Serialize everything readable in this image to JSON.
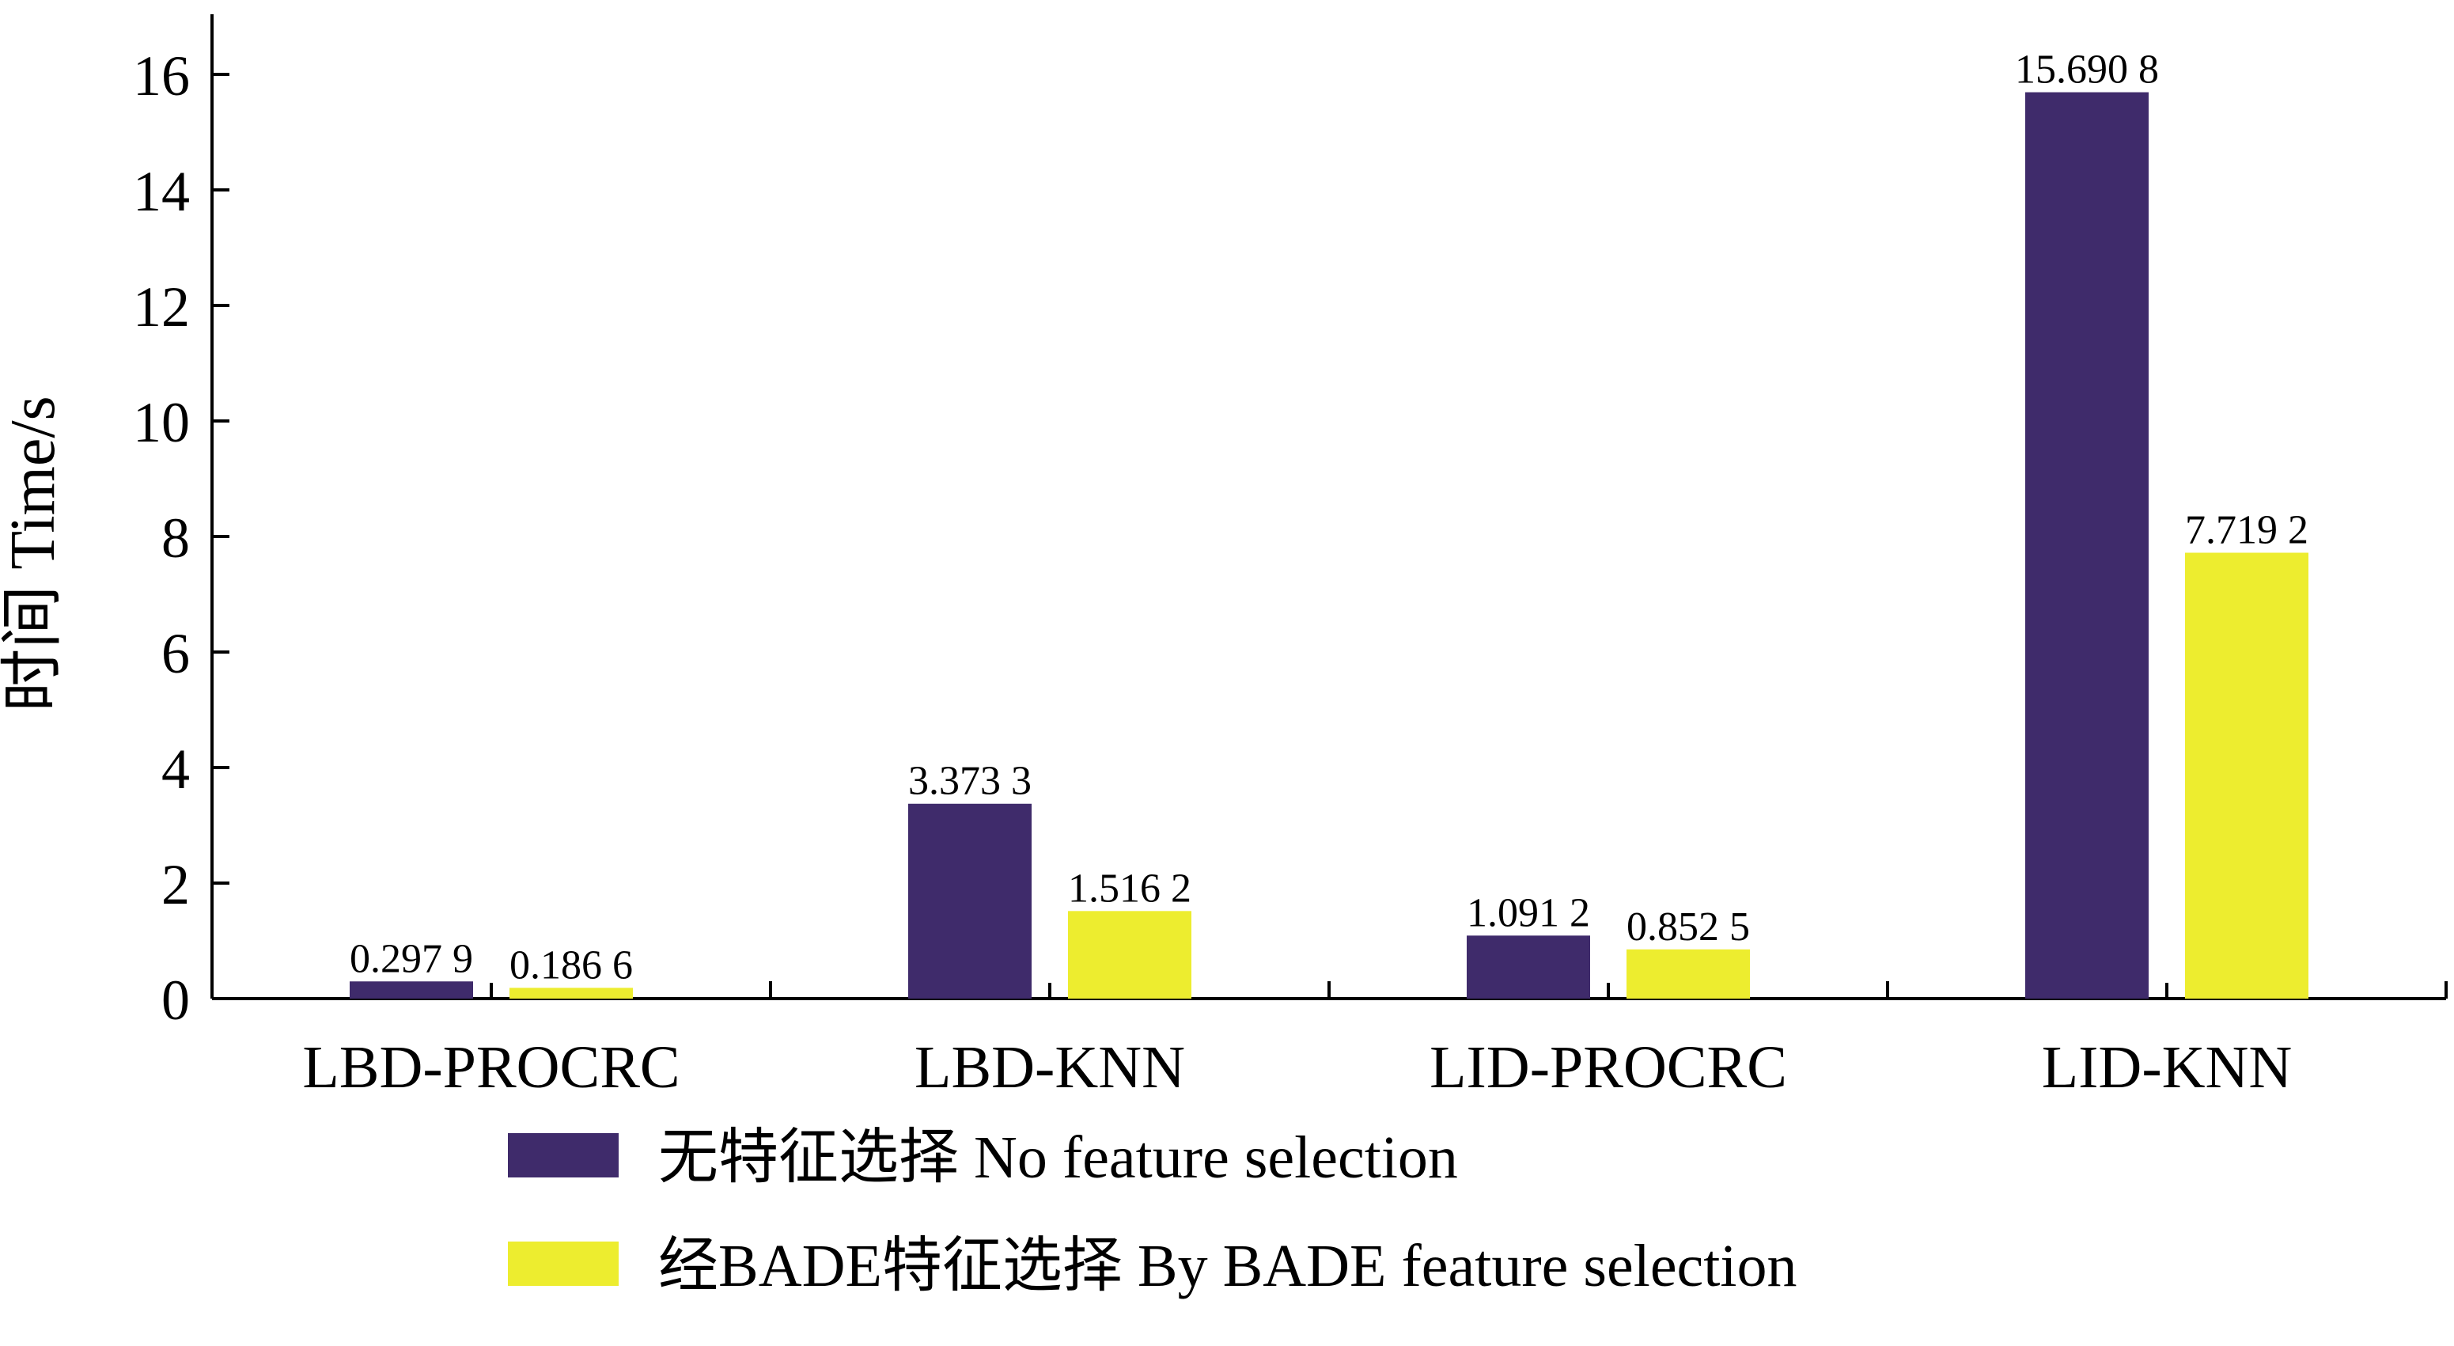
{
  "chart_data": {
    "type": "bar",
    "categories": [
      "LBD-PROCRC",
      "LBD-KNN",
      "LID-PROCRC",
      "LID-KNN"
    ],
    "series": [
      {
        "name": "无特征选择  No feature selection",
        "color": "#3f2b6b",
        "values": [
          0.2979,
          3.3733,
          1.0912,
          15.6908
        ],
        "value_labels": [
          "0.297 9",
          "3.373 3",
          "1.091 2",
          "15.690 8"
        ]
      },
      {
        "name": "经BADE特征选择  By BADE feature selection",
        "color": "#eded2f",
        "values": [
          0.1866,
          1.5162,
          0.8525,
          7.7192
        ],
        "value_labels": [
          "0.186 6",
          "1.516 2",
          "0.852 5",
          "7.719 2"
        ]
      }
    ],
    "ylabel": "时间  Time/s",
    "ylim": [
      0,
      17
    ],
    "yticks": [
      0,
      2,
      4,
      6,
      8,
      10,
      12,
      14,
      16
    ],
    "legend_position": "bottom"
  }
}
